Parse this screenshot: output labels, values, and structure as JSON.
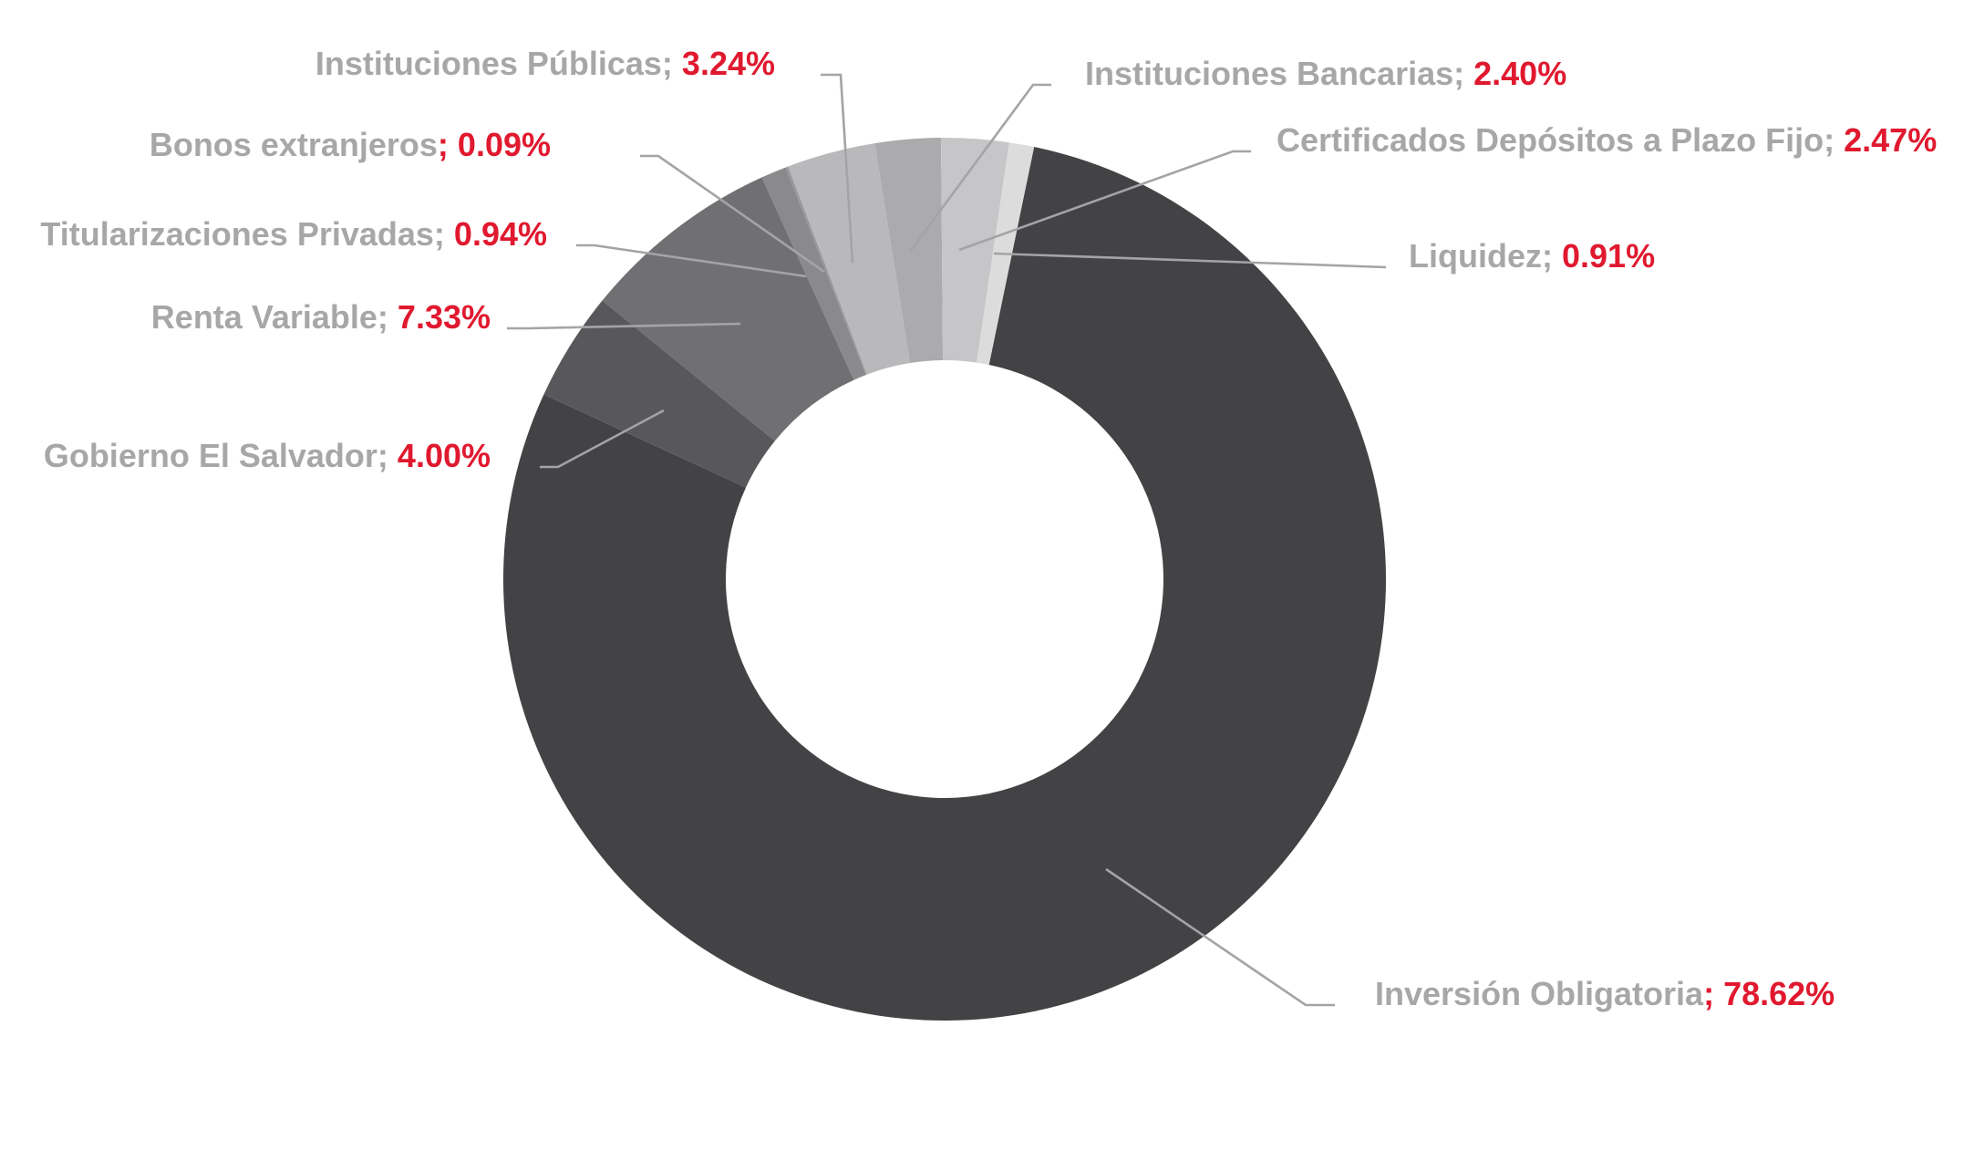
{
  "chart_data": {
    "type": "pie",
    "variant": "donut",
    "legend": "none",
    "slices": [
      {
        "label": "Inversión Obligatoria",
        "sep": "; ",
        "value": 78.62,
        "value_text": "78.62%",
        "color": "#434345",
        "name_key": "inversion-obligatoria"
      },
      {
        "label": "Gobierno El Salvador",
        "sep": "; ",
        "value": 4.0,
        "value_text": "4.00%",
        "color": "#58585b",
        "name_key": "gobierno-el-salvador"
      },
      {
        "label": "Renta Variable",
        "sep": "; ",
        "value": 7.33,
        "value_text": "7.33%",
        "color": "#707073",
        "name_key": "renta-variable"
      },
      {
        "label": "Titularizaciones Privadas",
        "sep": "; ",
        "value": 0.94,
        "value_text": "0.94%",
        "color": "#8a8a8d",
        "name_key": "titularizaciones-privadas"
      },
      {
        "label": "Bonos extranjeros",
        "sep": "; ",
        "value": 0.09,
        "value_text": "0.09%",
        "color": "#99999c",
        "name_key": "bonos-extranjeros"
      },
      {
        "label": "Instituciones Públicas",
        "sep": "; ",
        "value": 3.24,
        "value_text": "3.24%",
        "color": "#b9b9bb",
        "name_key": "instituciones-publicas"
      },
      {
        "label": "Instituciones Bancarias",
        "sep": "; ",
        "value": 2.4,
        "value_text": "2.40%",
        "color": "#ababae",
        "name_key": "instituciones-bancarias"
      },
      {
        "label": "Certificados Depósitos a Plazo Fijo",
        "sep": "; ",
        "value": 2.47,
        "value_text": "2.47%",
        "color": "#c6c6c8",
        "name_key": "certificados-depositos"
      },
      {
        "label": "Liquidez",
        "sep": "; ",
        "value": 0.91,
        "value_text": "0.91%",
        "color": "#dcdcdd",
        "name_key": "liquidez"
      }
    ]
  }
}
